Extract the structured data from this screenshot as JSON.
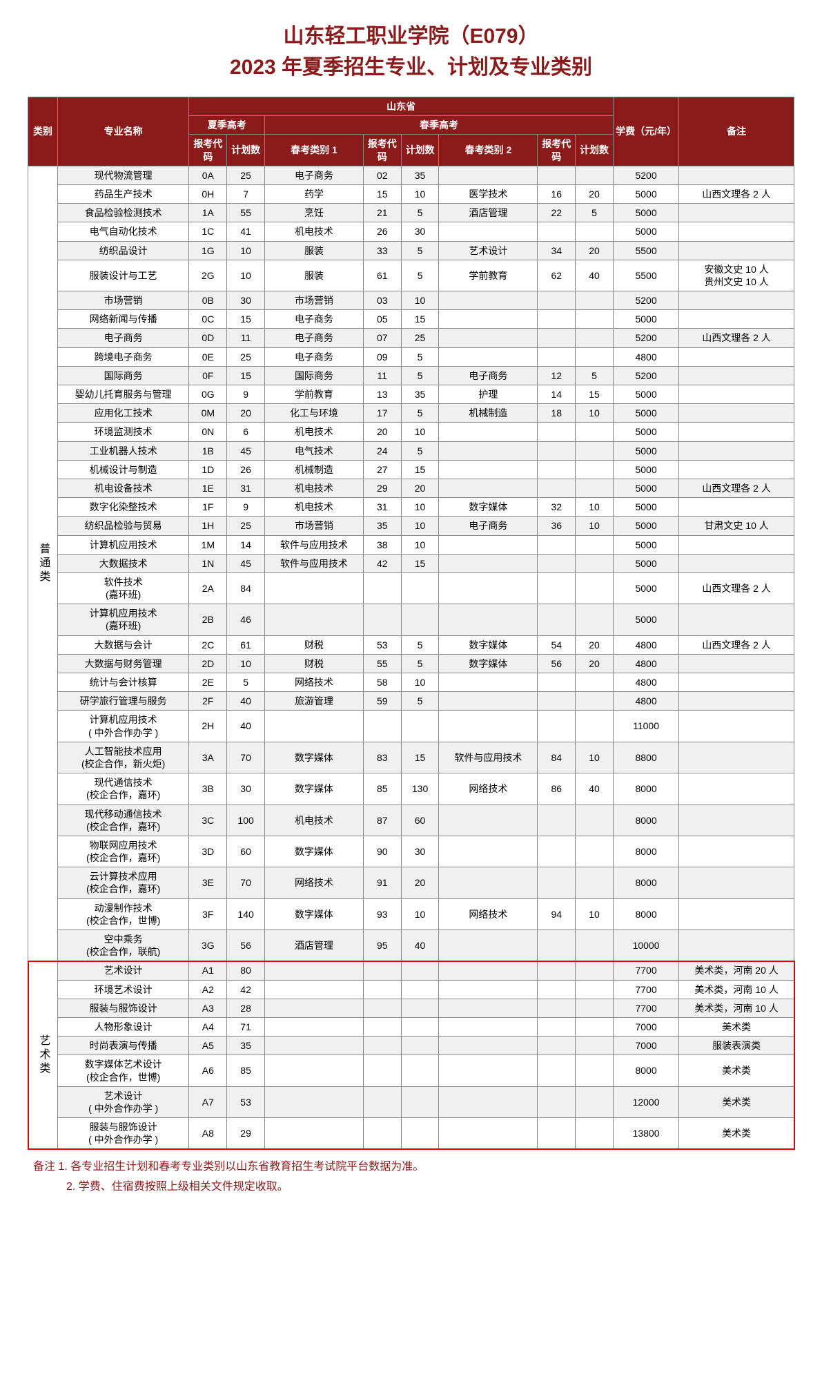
{
  "title_line1": "山东轻工职业学院（E079）",
  "title_line2": "2023 年夏季招生专业、计划及专业类别",
  "colors": {
    "header_bg": "#8b1a1a",
    "header_fg": "#ffffff",
    "row_alt_bg": "#f0f0f0",
    "row_bg": "#ffffff",
    "border": "#888888",
    "highlight_border": "#d00000"
  },
  "header": {
    "category": "类别",
    "major": "专业名称",
    "province": "山东省",
    "summer": "夏季高考",
    "spring": "春季高考",
    "code": "报考代码",
    "plan": "计划数",
    "spring_cat1": "春考类别 1",
    "spring_cat2": "春考类别 2",
    "fee": "学费（元/年）",
    "note": "备注"
  },
  "categories": {
    "general": "普通类",
    "art": "艺术类"
  },
  "rows_general": [
    {
      "major": "现代物流管理",
      "c1": "0A",
      "p1": "25",
      "sc1": "电子商务",
      "c2": "02",
      "p2": "35",
      "sc2": "",
      "c3": "",
      "p3": "",
      "fee": "5200",
      "note": ""
    },
    {
      "major": "药品生产技术",
      "c1": "0H",
      "p1": "7",
      "sc1": "药学",
      "c2": "15",
      "p2": "10",
      "sc2": "医学技术",
      "c3": "16",
      "p3": "20",
      "fee": "5000",
      "note": "山西文理各 2 人"
    },
    {
      "major": "食品检验检测技术",
      "c1": "1A",
      "p1": "55",
      "sc1": "烹饪",
      "c2": "21",
      "p2": "5",
      "sc2": "酒店管理",
      "c3": "22",
      "p3": "5",
      "fee": "5000",
      "note": ""
    },
    {
      "major": "电气自动化技术",
      "c1": "1C",
      "p1": "41",
      "sc1": "机电技术",
      "c2": "26",
      "p2": "30",
      "sc2": "",
      "c3": "",
      "p3": "",
      "fee": "5000",
      "note": ""
    },
    {
      "major": "纺织品设计",
      "c1": "1G",
      "p1": "10",
      "sc1": "服装",
      "c2": "33",
      "p2": "5",
      "sc2": "艺术设计",
      "c3": "34",
      "p3": "20",
      "fee": "5500",
      "note": ""
    },
    {
      "major": "服装设计与工艺",
      "c1": "2G",
      "p1": "10",
      "sc1": "服装",
      "c2": "61",
      "p2": "5",
      "sc2": "学前教育",
      "c3": "62",
      "p3": "40",
      "fee": "5500",
      "note": "安徽文史 10 人\n贵州文史 10 人"
    },
    {
      "major": "市场营销",
      "c1": "0B",
      "p1": "30",
      "sc1": "市场营销",
      "c2": "03",
      "p2": "10",
      "sc2": "",
      "c3": "",
      "p3": "",
      "fee": "5200",
      "note": ""
    },
    {
      "major": "网络新闻与传播",
      "c1": "0C",
      "p1": "15",
      "sc1": "电子商务",
      "c2": "05",
      "p2": "15",
      "sc2": "",
      "c3": "",
      "p3": "",
      "fee": "5000",
      "note": ""
    },
    {
      "major": "电子商务",
      "c1": "0D",
      "p1": "11",
      "sc1": "电子商务",
      "c2": "07",
      "p2": "25",
      "sc2": "",
      "c3": "",
      "p3": "",
      "fee": "5200",
      "note": "山西文理各 2 人"
    },
    {
      "major": "跨境电子商务",
      "c1": "0E",
      "p1": "25",
      "sc1": "电子商务",
      "c2": "09",
      "p2": "5",
      "sc2": "",
      "c3": "",
      "p3": "",
      "fee": "4800",
      "note": ""
    },
    {
      "major": "国际商务",
      "c1": "0F",
      "p1": "15",
      "sc1": "国际商务",
      "c2": "11",
      "p2": "5",
      "sc2": "电子商务",
      "c3": "12",
      "p3": "5",
      "fee": "5200",
      "note": ""
    },
    {
      "major": "婴幼儿托育服务与管理",
      "c1": "0G",
      "p1": "9",
      "sc1": "学前教育",
      "c2": "13",
      "p2": "35",
      "sc2": "护理",
      "c3": "14",
      "p3": "15",
      "fee": "5000",
      "note": ""
    },
    {
      "major": "应用化工技术",
      "c1": "0M",
      "p1": "20",
      "sc1": "化工与环境",
      "c2": "17",
      "p2": "5",
      "sc2": "机械制造",
      "c3": "18",
      "p3": "10",
      "fee": "5000",
      "note": ""
    },
    {
      "major": "环境监测技术",
      "c1": "0N",
      "p1": "6",
      "sc1": "机电技术",
      "c2": "20",
      "p2": "10",
      "sc2": "",
      "c3": "",
      "p3": "",
      "fee": "5000",
      "note": ""
    },
    {
      "major": "工业机器人技术",
      "c1": "1B",
      "p1": "45",
      "sc1": "电气技术",
      "c2": "24",
      "p2": "5",
      "sc2": "",
      "c3": "",
      "p3": "",
      "fee": "5000",
      "note": ""
    },
    {
      "major": "机械设计与制造",
      "c1": "1D",
      "p1": "26",
      "sc1": "机械制造",
      "c2": "27",
      "p2": "15",
      "sc2": "",
      "c3": "",
      "p3": "",
      "fee": "5000",
      "note": ""
    },
    {
      "major": "机电设备技术",
      "c1": "1E",
      "p1": "31",
      "sc1": "机电技术",
      "c2": "29",
      "p2": "20",
      "sc2": "",
      "c3": "",
      "p3": "",
      "fee": "5000",
      "note": "山西文理各 2 人"
    },
    {
      "major": "数字化染整技术",
      "c1": "1F",
      "p1": "9",
      "sc1": "机电技术",
      "c2": "31",
      "p2": "10",
      "sc2": "数字媒体",
      "c3": "32",
      "p3": "10",
      "fee": "5000",
      "note": ""
    },
    {
      "major": "纺织品检验与贸易",
      "c1": "1H",
      "p1": "25",
      "sc1": "市场营销",
      "c2": "35",
      "p2": "10",
      "sc2": "电子商务",
      "c3": "36",
      "p3": "10",
      "fee": "5000",
      "note": "甘肃文史 10 人"
    },
    {
      "major": "计算机应用技术",
      "c1": "1M",
      "p1": "14",
      "sc1": "软件与应用技术",
      "c2": "38",
      "p2": "10",
      "sc2": "",
      "c3": "",
      "p3": "",
      "fee": "5000",
      "note": ""
    },
    {
      "major": "大数据技术",
      "c1": "1N",
      "p1": "45",
      "sc1": "软件与应用技术",
      "c2": "42",
      "p2": "15",
      "sc2": "",
      "c3": "",
      "p3": "",
      "fee": "5000",
      "note": ""
    },
    {
      "major": "软件技术\n(嘉环班)",
      "c1": "2A",
      "p1": "84",
      "sc1": "",
      "c2": "",
      "p2": "",
      "sc2": "",
      "c3": "",
      "p3": "",
      "fee": "5000",
      "note": "山西文理各 2 人"
    },
    {
      "major": "计算机应用技术\n(嘉环班)",
      "c1": "2B",
      "p1": "46",
      "sc1": "",
      "c2": "",
      "p2": "",
      "sc2": "",
      "c3": "",
      "p3": "",
      "fee": "5000",
      "note": ""
    },
    {
      "major": "大数据与会计",
      "c1": "2C",
      "p1": "61",
      "sc1": "财税",
      "c2": "53",
      "p2": "5",
      "sc2": "数字媒体",
      "c3": "54",
      "p3": "20",
      "fee": "4800",
      "note": "山西文理各 2 人"
    },
    {
      "major": "大数据与财务管理",
      "c1": "2D",
      "p1": "10",
      "sc1": "财税",
      "c2": "55",
      "p2": "5",
      "sc2": "数字媒体",
      "c3": "56",
      "p3": "20",
      "fee": "4800",
      "note": ""
    },
    {
      "major": "统计与会计核算",
      "c1": "2E",
      "p1": "5",
      "sc1": "网络技术",
      "c2": "58",
      "p2": "10",
      "sc2": "",
      "c3": "",
      "p3": "",
      "fee": "4800",
      "note": ""
    },
    {
      "major": "研学旅行管理与服务",
      "c1": "2F",
      "p1": "40",
      "sc1": "旅游管理",
      "c2": "59",
      "p2": "5",
      "sc2": "",
      "c3": "",
      "p3": "",
      "fee": "4800",
      "note": ""
    },
    {
      "major": "计算机应用技术\n( 中外合作办学 )",
      "c1": "2H",
      "p1": "40",
      "sc1": "",
      "c2": "",
      "p2": "",
      "sc2": "",
      "c3": "",
      "p3": "",
      "fee": "11000",
      "note": ""
    },
    {
      "major": "人工智能技术应用\n(校企合作，新火炬)",
      "c1": "3A",
      "p1": "70",
      "sc1": "数字媒体",
      "c2": "83",
      "p2": "15",
      "sc2": "软件与应用技术",
      "c3": "84",
      "p3": "10",
      "fee": "8800",
      "note": ""
    },
    {
      "major": "现代通信技术\n(校企合作，嘉环)",
      "c1": "3B",
      "p1": "30",
      "sc1": "数字媒体",
      "c2": "85",
      "p2": "130",
      "sc2": "网络技术",
      "c3": "86",
      "p3": "40",
      "fee": "8000",
      "note": ""
    },
    {
      "major": "现代移动通信技术\n(校企合作，嘉环)",
      "c1": "3C",
      "p1": "100",
      "sc1": "机电技术",
      "c2": "87",
      "p2": "60",
      "sc2": "",
      "c3": "",
      "p3": "",
      "fee": "8000",
      "note": ""
    },
    {
      "major": "物联网应用技术\n(校企合作，嘉环)",
      "c1": "3D",
      "p1": "60",
      "sc1": "数字媒体",
      "c2": "90",
      "p2": "30",
      "sc2": "",
      "c3": "",
      "p3": "",
      "fee": "8000",
      "note": ""
    },
    {
      "major": "云计算技术应用\n(校企合作，嘉环)",
      "c1": "3E",
      "p1": "70",
      "sc1": "网络技术",
      "c2": "91",
      "p2": "20",
      "sc2": "",
      "c3": "",
      "p3": "",
      "fee": "8000",
      "note": ""
    },
    {
      "major": "动漫制作技术\n(校企合作，世博)",
      "c1": "3F",
      "p1": "140",
      "sc1": "数字媒体",
      "c2": "93",
      "p2": "10",
      "sc2": "网络技术",
      "c3": "94",
      "p3": "10",
      "fee": "8000",
      "note": ""
    },
    {
      "major": "空中乘务\n(校企合作，联航)",
      "c1": "3G",
      "p1": "56",
      "sc1": "酒店管理",
      "c2": "95",
      "p2": "40",
      "sc2": "",
      "c3": "",
      "p3": "",
      "fee": "10000",
      "note": ""
    }
  ],
  "rows_art": [
    {
      "major": "艺术设计",
      "c1": "A1",
      "p1": "80",
      "sc1": "",
      "c2": "",
      "p2": "",
      "sc2": "",
      "c3": "",
      "p3": "",
      "fee": "7700",
      "note": "美术类，河南 20 人"
    },
    {
      "major": "环境艺术设计",
      "c1": "A2",
      "p1": "42",
      "sc1": "",
      "c2": "",
      "p2": "",
      "sc2": "",
      "c3": "",
      "p3": "",
      "fee": "7700",
      "note": "美术类，河南 10 人"
    },
    {
      "major": "服装与服饰设计",
      "c1": "A3",
      "p1": "28",
      "sc1": "",
      "c2": "",
      "p2": "",
      "sc2": "",
      "c3": "",
      "p3": "",
      "fee": "7700",
      "note": "美术类，河南 10 人"
    },
    {
      "major": "人物形象设计",
      "c1": "A4",
      "p1": "71",
      "sc1": "",
      "c2": "",
      "p2": "",
      "sc2": "",
      "c3": "",
      "p3": "",
      "fee": "7000",
      "note": "美术类"
    },
    {
      "major": "时尚表演与传播",
      "c1": "A5",
      "p1": "35",
      "sc1": "",
      "c2": "",
      "p2": "",
      "sc2": "",
      "c3": "",
      "p3": "",
      "fee": "7000",
      "note": "服装表演类"
    },
    {
      "major": "数字媒体艺术设计\n(校企合作，世博)",
      "c1": "A6",
      "p1": "85",
      "sc1": "",
      "c2": "",
      "p2": "",
      "sc2": "",
      "c3": "",
      "p3": "",
      "fee": "8000",
      "note": "美术类"
    },
    {
      "major": "艺术设计\n( 中外合作办学 )",
      "c1": "A7",
      "p1": "53",
      "sc1": "",
      "c2": "",
      "p2": "",
      "sc2": "",
      "c3": "",
      "p3": "",
      "fee": "12000",
      "note": "美术类"
    },
    {
      "major": "服装与服饰设计\n( 中外合作办学 )",
      "c1": "A8",
      "p1": "29",
      "sc1": "",
      "c2": "",
      "p2": "",
      "sc2": "",
      "c3": "",
      "p3": "",
      "fee": "13800",
      "note": "美术类"
    }
  ],
  "footnote1": "备注  1. 各专业招生计划和春考专业类别以山东省教育招生考试院平台数据为准。",
  "footnote2": "　　　2. 学费、住宿费按照上级相关文件规定收取。"
}
